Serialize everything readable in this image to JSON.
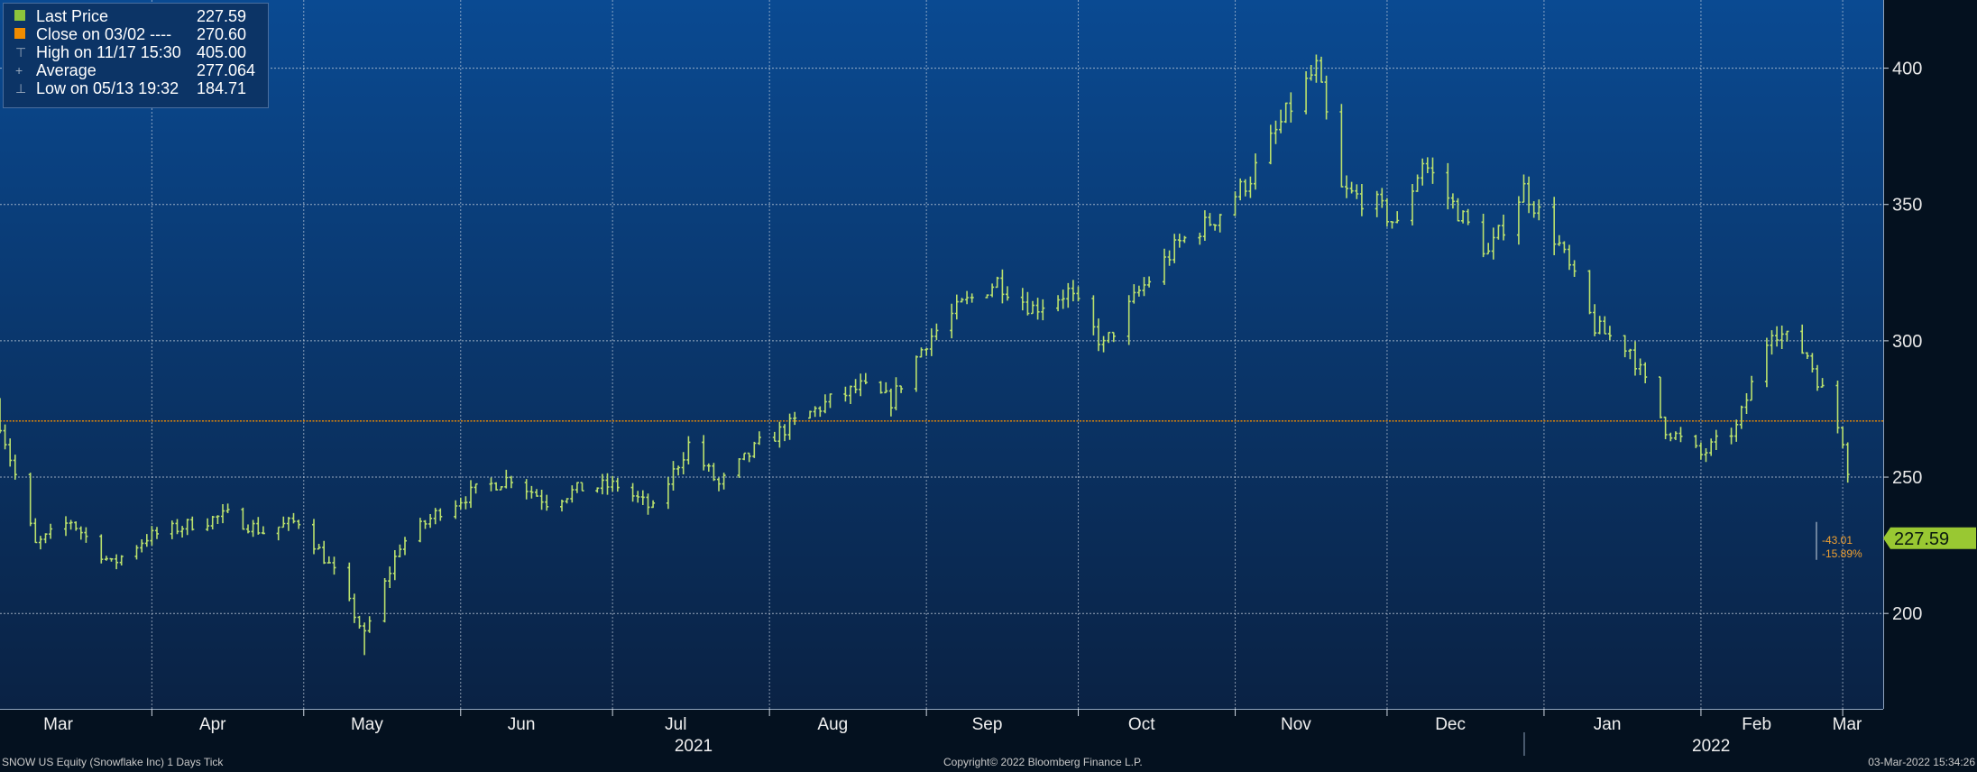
{
  "chart_data": {
    "type": "bar",
    "subtype": "ohlc-tick",
    "security": "SNOW US Equity (Snowflake Inc)",
    "period": "1 Days",
    "mode": "Tick",
    "ylim": [
      165,
      425
    ],
    "yticks": [
      200,
      250,
      300,
      350,
      400
    ],
    "grid": true,
    "months": [
      {
        "label": "Mar",
        "date": "2021-03-01"
      },
      {
        "label": "Apr",
        "date": "2021-04-01"
      },
      {
        "label": "May",
        "date": "2021-05-01"
      },
      {
        "label": "Jun",
        "date": "2021-06-01"
      },
      {
        "label": "Jul",
        "date": "2021-07-01"
      },
      {
        "label": "Aug",
        "date": "2021-08-01"
      },
      {
        "label": "Sep",
        "date": "2021-09-01"
      },
      {
        "label": "Oct",
        "date": "2021-10-01"
      },
      {
        "label": "Nov",
        "date": "2021-11-01"
      },
      {
        "label": "Dec",
        "date": "2021-12-01"
      },
      {
        "label": "Jan",
        "date": "2022-01-01"
      },
      {
        "label": "Feb",
        "date": "2022-02-01"
      },
      {
        "label": "Mar",
        "date": "2022-03-01"
      }
    ],
    "years": [
      {
        "label": "2021",
        "date": "2021-07-17"
      },
      {
        "label": "2022",
        "date": "2022-02-03"
      }
    ],
    "year_divider": "2021-12-28",
    "x_start": "2021-03-02",
    "x_end": "2022-03-09",
    "price_path": [
      [
        "2021-03-02",
        270
      ],
      [
        "2021-03-09",
        225
      ],
      [
        "2021-03-16",
        234
      ],
      [
        "2021-03-24",
        218
      ],
      [
        "2021-03-31",
        228
      ],
      [
        "2021-04-09",
        233
      ],
      [
        "2021-04-16",
        236
      ],
      [
        "2021-04-23",
        230
      ],
      [
        "2021-04-30",
        234
      ],
      [
        "2021-05-07",
        215
      ],
      [
        "2021-05-13",
        192
      ],
      [
        "2021-05-20",
        225
      ],
      [
        "2021-05-28",
        238
      ],
      [
        "2021-06-04",
        245
      ],
      [
        "2021-06-11",
        250
      ],
      [
        "2021-06-18",
        241
      ],
      [
        "2021-06-25",
        246
      ],
      [
        "2021-07-02",
        247
      ],
      [
        "2021-07-09",
        238
      ],
      [
        "2021-07-16",
        262
      ],
      [
        "2021-07-22",
        247
      ],
      [
        "2021-07-30",
        262
      ],
      [
        "2021-08-06",
        270
      ],
      [
        "2021-08-13",
        278
      ],
      [
        "2021-08-19",
        283
      ],
      [
        "2021-08-25",
        278
      ],
      [
        "2021-09-01",
        300
      ],
      [
        "2021-09-08",
        313
      ],
      [
        "2021-09-15",
        322
      ],
      [
        "2021-09-22",
        312
      ],
      [
        "2021-09-29",
        318
      ],
      [
        "2021-10-06",
        298
      ],
      [
        "2021-10-13",
        318
      ],
      [
        "2021-10-21",
        336
      ],
      [
        "2021-10-28",
        345
      ],
      [
        "2021-11-04",
        360
      ],
      [
        "2021-11-11",
        383
      ],
      [
        "2021-11-17",
        400
      ],
      [
        "2021-11-22",
        355
      ],
      [
        "2021-11-29",
        350
      ],
      [
        "2021-12-03",
        342
      ],
      [
        "2021-12-08",
        366
      ],
      [
        "2021-12-14",
        350
      ],
      [
        "2021-12-21",
        332
      ],
      [
        "2021-12-28",
        356
      ],
      [
        "2022-01-04",
        335
      ],
      [
        "2022-01-11",
        305
      ],
      [
        "2022-01-18",
        297
      ],
      [
        "2022-01-25",
        268
      ],
      [
        "2022-02-01",
        258
      ],
      [
        "2022-02-08",
        268
      ],
      [
        "2022-02-15",
        305
      ],
      [
        "2022-02-22",
        295
      ],
      [
        "2022-03-01",
        264
      ],
      [
        "2022-03-02",
        262
      ]
    ],
    "reference_lines": [
      {
        "name": "Close on 03/02",
        "value": 270.6,
        "color": "#f08c00",
        "style": "dotted"
      }
    ],
    "last_price_marker": {
      "value": 227.59,
      "label": "227.59",
      "change": "-43.01",
      "change_pct": "-15.89%"
    }
  },
  "legend": [
    {
      "label": "Last Price",
      "value": "227.59",
      "color": "#8cc43c",
      "marker": "square"
    },
    {
      "label": "Close on 03/02 ----",
      "value": "270.60",
      "color": "#f08c00",
      "marker": "square"
    },
    {
      "label": "High on 11/17 15:30",
      "value": "405.00",
      "marker": "glyph",
      "glyph": "⊤"
    },
    {
      "label": "Average",
      "value": "277.064",
      "marker": "glyph",
      "glyph": "+"
    },
    {
      "label": "Low on 05/13 19:32",
      "value": "184.71",
      "marker": "glyph",
      "glyph": "⊥"
    }
  ],
  "colors": {
    "plot_top": "#0a4a92",
    "plot_bottom": "#0a2244",
    "bars": "#b9e06d",
    "grid": "#c9d3e0",
    "axis_bg": "#04111f",
    "price_tag": "#99c832"
  },
  "footer": {
    "left": "SNOW US Equity (Snowflake Inc) 1 Days  Tick",
    "center": "Copyright© 2022 Bloomberg Finance L.P.",
    "right": "03-Mar-2022 15:34:26"
  }
}
